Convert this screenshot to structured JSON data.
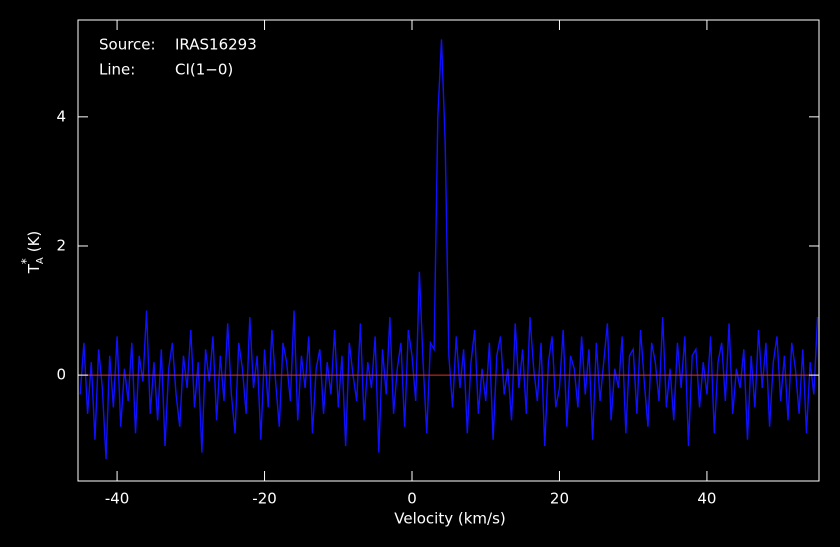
{
  "chart_data": {
    "type": "line",
    "xlabel": "Velocity (km/s)",
    "ylabel": {
      "main": "T",
      "sup": "*",
      "sub": "A",
      "unit": "(K)"
    },
    "annotations": [
      {
        "label": "Source:",
        "value": "IRAS16293"
      },
      {
        "label": "Line:",
        "value": "CI(1−0)"
      }
    ],
    "xlim": [
      -45.3,
      55.2
    ],
    "ylim": [
      -1.64,
      5.5
    ],
    "xticks": [
      -40,
      -20,
      0,
      20,
      40
    ],
    "yticks": [
      0,
      2,
      4
    ],
    "baseline": {
      "value": 0,
      "color": "#e03020"
    },
    "background": "#000000",
    "axis_color": "#ffffff",
    "x": [
      -45,
      -44.5,
      -44,
      -43.5,
      -43,
      -42.5,
      -42,
      -41.5,
      -41,
      -40.5,
      -40,
      -39.5,
      -39,
      -38.5,
      -38,
      -37.5,
      -37,
      -36.5,
      -36,
      -35.5,
      -35,
      -34.5,
      -34,
      -33.5,
      -33,
      -32.5,
      -32,
      -31.5,
      -31,
      -30.5,
      -30,
      -29.5,
      -29,
      -28.5,
      -28,
      -27.5,
      -27,
      -26.5,
      -26,
      -25.5,
      -25,
      -24.5,
      -24,
      -23.5,
      -23,
      -22.5,
      -22,
      -21.5,
      -21,
      -20.5,
      -20,
      -19.5,
      -19,
      -18.5,
      -18,
      -17.5,
      -17,
      -16.5,
      -16,
      -15.5,
      -15,
      -14.5,
      -14,
      -13.5,
      -13,
      -12.5,
      -12,
      -11.5,
      -11,
      -10.5,
      -10,
      -9.5,
      -9,
      -8.5,
      -8,
      -7.5,
      -7,
      -6.5,
      -6,
      -5.5,
      -5,
      -4.5,
      -4,
      -3.5,
      -3,
      -2.5,
      -2,
      -1.5,
      -1,
      -0.5,
      0,
      0.5,
      1,
      1.5,
      2,
      2.5,
      3,
      3.5,
      4,
      4.5,
      5,
      5.5,
      6,
      6.5,
      7,
      7.5,
      8,
      8.5,
      9,
      9.5,
      10,
      10.5,
      11,
      11.5,
      12,
      12.5,
      13,
      13.5,
      14,
      14.5,
      15,
      15.5,
      16,
      16.5,
      17,
      17.5,
      18,
      18.5,
      19,
      19.5,
      20,
      20.5,
      21,
      21.5,
      22,
      22.5,
      23,
      23.5,
      24,
      24.5,
      25,
      25.5,
      26,
      26.5,
      27,
      27.5,
      28,
      28.5,
      29,
      29.5,
      30,
      30.5,
      31,
      31.5,
      32,
      32.5,
      33,
      33.5,
      34,
      34.5,
      35,
      35.5,
      36,
      36.5,
      37,
      37.5,
      38,
      38.5,
      39,
      39.5,
      40,
      40.5,
      41,
      41.5,
      42,
      42.5,
      43,
      43.5,
      44,
      44.5,
      45,
      45.5,
      46,
      46.5,
      47,
      47.5,
      48,
      48.5,
      49,
      49.5,
      50,
      50.5,
      51,
      51.5,
      52,
      52.5,
      53,
      53.5,
      54,
      54.5,
      55
    ],
    "series": [
      {
        "color": "#1010ff",
        "values": [
          -0.3,
          0.5,
          -0.6,
          0.2,
          -1.0,
          0.4,
          -0.2,
          -1.3,
          0.3,
          -0.5,
          0.6,
          -0.8,
          0.1,
          -0.4,
          0.5,
          -0.9,
          0.3,
          -0.1,
          1.0,
          -0.6,
          0.2,
          -0.7,
          0.4,
          -1.1,
          0.1,
          0.5,
          -0.3,
          -0.8,
          0.3,
          -0.2,
          0.7,
          -0.5,
          0.2,
          -1.2,
          0.4,
          -0.1,
          0.6,
          -0.7,
          0.3,
          -0.4,
          0.8,
          -0.3,
          -0.9,
          0.5,
          0.1,
          -0.6,
          0.9,
          -0.2,
          0.3,
          -1.0,
          0.4,
          -0.5,
          0.7,
          -0.1,
          -0.8,
          0.5,
          0.2,
          -0.4,
          1.0,
          -0.7,
          0.3,
          -0.2,
          0.6,
          -0.9,
          0.1,
          0.4,
          -0.6,
          0.2,
          -0.3,
          0.7,
          -0.5,
          0.3,
          -1.1,
          0.5,
          0.0,
          -0.4,
          0.8,
          -0.7,
          0.2,
          -0.2,
          0.6,
          -1.2,
          0.4,
          -0.3,
          0.9,
          -0.6,
          0.1,
          0.5,
          -0.8,
          0.7,
          0.3,
          -0.4,
          1.6,
          0.2,
          -0.9,
          0.5,
          0.4,
          4.0,
          5.2,
          3.6,
          0.3,
          -0.5,
          0.6,
          -0.2,
          0.4,
          -0.9,
          0.2,
          0.7,
          -0.6,
          0.1,
          -0.4,
          0.5,
          -1.0,
          0.3,
          0.6,
          -0.3,
          0.1,
          -0.7,
          0.8,
          -0.2,
          0.4,
          -0.6,
          0.9,
          0.1,
          -0.4,
          0.5,
          -1.1,
          0.2,
          0.6,
          -0.5,
          -0.2,
          0.7,
          -0.8,
          0.3,
          0.1,
          -0.5,
          0.6,
          -0.3,
          0.4,
          -1.0,
          0.5,
          -0.4,
          0.2,
          0.8,
          -0.7,
          0.1,
          -0.2,
          0.6,
          -0.9,
          0.3,
          0.4,
          -0.6,
          0.7,
          -0.1,
          -0.8,
          0.5,
          0.2,
          -0.4,
          0.9,
          -0.5,
          0.1,
          -0.7,
          0.5,
          -0.2,
          0.6,
          -1.1,
          0.3,
          0.4,
          -0.5,
          0.2,
          -0.3,
          0.6,
          -0.9,
          0.2,
          0.5,
          -0.4,
          0.8,
          -0.6,
          0.1,
          -0.2,
          0.4,
          -1.0,
          0.3,
          -0.5,
          0.7,
          -0.2,
          0.5,
          -0.8,
          0.2,
          0.6,
          -0.4,
          0.3,
          -0.7,
          0.5,
          0.1,
          -0.6,
          0.4,
          -0.9,
          0.2,
          -0.3,
          0.9
        ]
      }
    ]
  }
}
